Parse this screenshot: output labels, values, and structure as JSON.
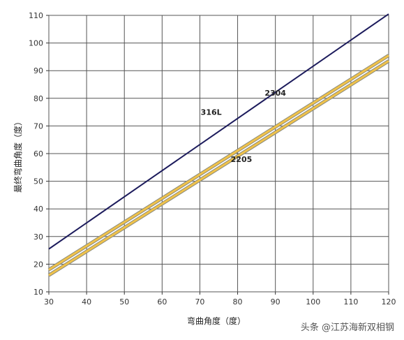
{
  "chart_data": {
    "type": "line",
    "title": "",
    "xlabel": "弯曲角度（度）",
    "ylabel": "最终弯曲角度（度）",
    "xlim": [
      30,
      120
    ],
    "ylim": [
      10,
      110
    ],
    "x_ticks": [
      30,
      40,
      50,
      60,
      70,
      80,
      90,
      100,
      110,
      120
    ],
    "y_ticks": [
      10,
      20,
      30,
      40,
      50,
      60,
      70,
      80,
      90,
      100,
      110
    ],
    "grid": true,
    "series": [
      {
        "name": "316L",
        "color": "#1c1b5c",
        "x": [
          30,
          120
        ],
        "y": [
          25.5,
          110.5
        ]
      },
      {
        "name": "2304",
        "color": "#f0c24a",
        "x": [
          30,
          120
        ],
        "y": [
          18.0,
          95.5
        ]
      },
      {
        "name": "2205",
        "color": "#f0c24a",
        "x": [
          30,
          120
        ],
        "y": [
          16.0,
          93.5
        ]
      }
    ]
  },
  "watermark": "头条 @江苏海新双相钢"
}
